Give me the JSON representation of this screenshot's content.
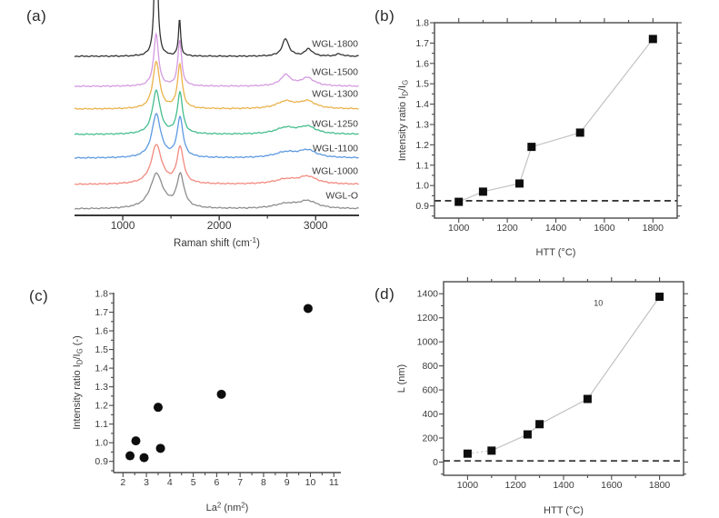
{
  "panels": [
    {
      "tag": "(a)"
    },
    {
      "tag": "(b)"
    },
    {
      "tag": "(c)"
    },
    {
      "tag": "(d)"
    }
  ],
  "colors": {
    "frame": "#4a4a4a",
    "text": "#3a3a3a",
    "marker": "#0d0d0d",
    "connector": "#bdbdbd",
    "dashline": "#1a1a1a"
  },
  "chart_data": [
    {
      "id": "a",
      "type": "spectra",
      "xlabel": "Raman shift (cm^{-1})",
      "xlim": [
        500,
        3450
      ],
      "xticks": [
        1000,
        2000,
        3000
      ],
      "xminor": 500,
      "ylim": [
        0,
        235
      ],
      "grid": false,
      "series": [
        {
          "name": "WGL-O",
          "color": "#8d8d8d",
          "offset": 7,
          "label_y": 215,
          "peaks": [
            [
              1350,
              38,
              80
            ],
            [
              1598,
              36,
              45
            ],
            [
              2690,
              5,
              150
            ],
            [
              2920,
              8,
              120
            ]
          ]
        },
        {
          "name": "WGL-1000",
          "color": "#f2897f",
          "offset": 34,
          "label_y": 188,
          "peaks": [
            [
              1349,
              43,
              65
            ],
            [
              1596,
              40,
              40
            ],
            [
              2690,
              5,
              150
            ],
            [
              2918,
              8,
              115
            ]
          ]
        },
        {
          "name": "WGL-1100",
          "color": "#5d99e0",
          "offset": 63,
          "label_y": 163,
          "peaks": [
            [
              1348,
              48,
              55
            ],
            [
              1594,
              44,
              36
            ],
            [
              2690,
              6,
              140
            ],
            [
              2916,
              8,
              110
            ]
          ]
        },
        {
          "name": "WGL-1250",
          "color": "#44bd8e",
          "offset": 89,
          "label_y": 136,
          "peaks": [
            [
              1348,
              48,
              48
            ],
            [
              1593,
              45,
              33
            ],
            [
              2690,
              7,
              130
            ],
            [
              2916,
              8,
              105
            ]
          ]
        },
        {
          "name": "WGL-1300",
          "color": "#eab24a",
          "offset": 117,
          "label_y": 103,
          "peaks": [
            [
              1347,
              52,
              42
            ],
            [
              1592,
              48,
              30
            ],
            [
              2690,
              8,
              115
            ],
            [
              2915,
              8,
              100
            ]
          ]
        },
        {
          "name": "WGL-1500",
          "color": "#d49ae0",
          "offset": 142,
          "label_y": 79,
          "peaks": [
            [
              1346,
              57,
              30
            ],
            [
              1591,
              50,
              24
            ],
            [
              2690,
              12,
              65
            ],
            [
              2915,
              9,
              85
            ]
          ]
        },
        {
          "name": "WGL-1800",
          "color": "#333333",
          "offset": 175,
          "label_y": 48,
          "peaks": [
            [
              1345,
              190,
              16
            ],
            [
              1589,
              40,
              14
            ],
            [
              2688,
              19,
              42
            ],
            [
              2928,
              8,
              45
            ],
            [
              3245,
              2.5,
              40
            ]
          ]
        }
      ]
    },
    {
      "id": "b",
      "type": "scatter",
      "marker": "square",
      "connect": true,
      "box": true,
      "xlabel": "HTT (°C)",
      "ylabel": "Intensity ratio I_{D}/I_{G}",
      "xlim": [
        900,
        1900
      ],
      "xticks": [
        1000,
        1200,
        1400,
        1600,
        1800
      ],
      "xminor": 100,
      "xdec": 0,
      "ylim": [
        0.84,
        1.8
      ],
      "yticks": [
        0.9,
        1.0,
        1.1,
        1.2,
        1.3,
        1.4,
        1.5,
        1.6,
        1.7,
        1.8
      ],
      "yminor": 0.05,
      "ydec": 1,
      "points": {
        "x": [
          1000,
          1100,
          1250,
          1300,
          1500,
          1800
        ],
        "y": [
          0.92,
          0.97,
          1.01,
          1.19,
          1.26,
          1.72
        ]
      },
      "dashed_hline": 0.925
    },
    {
      "id": "c",
      "type": "scatter",
      "marker": "circle",
      "connect": false,
      "box": false,
      "xlabel": "La^{2} (nm^{2})",
      "ylabel": "Intensity ratio I_{D}/I_{G} (-)",
      "xlim": [
        1.6,
        11.3
      ],
      "xticks": [
        2,
        3,
        4,
        5,
        6,
        7,
        8,
        9,
        10,
        11
      ],
      "xminor": 0.5,
      "xdec": 0,
      "ylim": [
        0.84,
        1.805
      ],
      "yticks": [
        0.9,
        1.0,
        1.1,
        1.2,
        1.3,
        1.4,
        1.5,
        1.6,
        1.7,
        1.8
      ],
      "yminor": 0.05,
      "ydec": 1,
      "points": {
        "x": [
          2.3,
          2.55,
          2.9,
          3.5,
          3.6,
          6.2,
          9.9
        ],
        "y": [
          0.93,
          1.01,
          0.92,
          1.19,
          0.97,
          1.26,
          1.72
        ]
      }
    },
    {
      "id": "d",
      "type": "scatter",
      "marker": "square",
      "connect": true,
      "dotted_segments": [
        0
      ],
      "box": true,
      "xlabel": "HTT (°C)",
      "ylabel": "L (nm)",
      "xlim": [
        900,
        1900
      ],
      "xticks": [
        1000,
        1200,
        1400,
        1600,
        1800
      ],
      "xminor": 100,
      "xdec": 0,
      "ylim": [
        -110,
        1500
      ],
      "yticks": [
        0,
        200,
        400,
        600,
        800,
        1000,
        1200,
        1400
      ],
      "yminor": 100,
      "ydec": 0,
      "points": {
        "x": [
          1000,
          1100,
          1250,
          1300,
          1500,
          1800
        ],
        "y": [
          70,
          95,
          230,
          315,
          525,
          1375
        ]
      },
      "dashed_hline": 10,
      "annotation": {
        "text": "10",
        "x": 1545,
        "y": 1300,
        "color": "#c9c9c9"
      }
    }
  ]
}
